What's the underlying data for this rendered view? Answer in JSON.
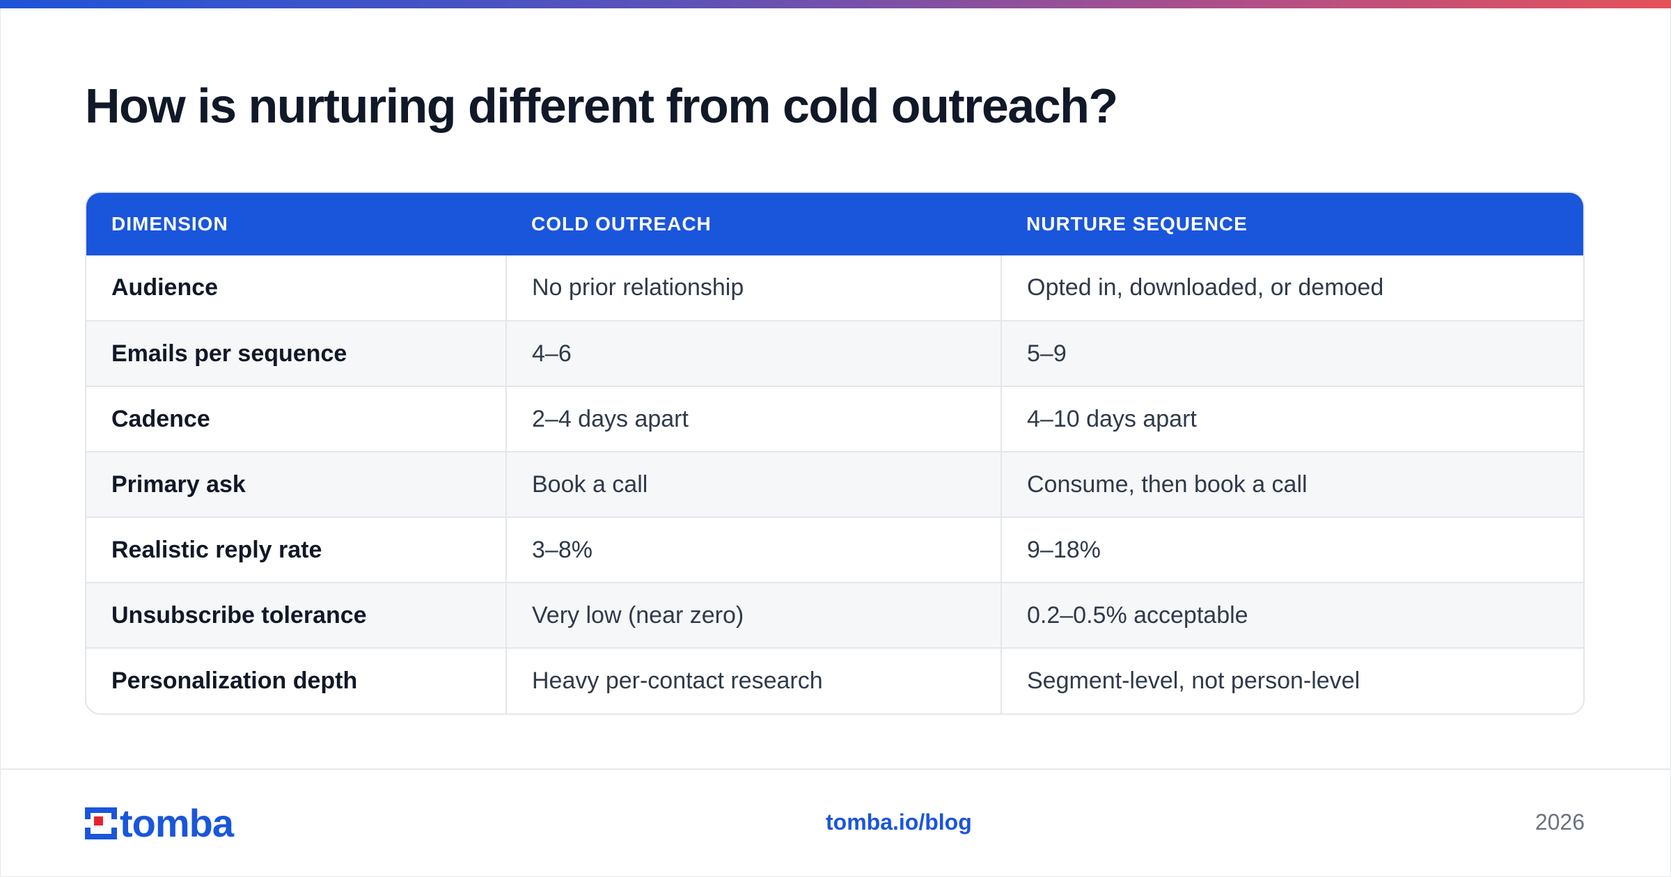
{
  "title": "How is nurturing different from cold outreach?",
  "table": {
    "headers": [
      "DIMENSION",
      "COLD OUTREACH",
      "NURTURE SEQUENCE"
    ],
    "rows": [
      [
        "Audience",
        "No prior relationship",
        "Opted in, downloaded, or demoed"
      ],
      [
        "Emails per sequence",
        "4–6",
        "5–9"
      ],
      [
        "Cadence",
        "2–4 days apart",
        "4–10 days apart"
      ],
      [
        "Primary ask",
        "Book a call",
        "Consume, then book a call"
      ],
      [
        "Realistic reply rate",
        "3–8%",
        "9–18%"
      ],
      [
        "Unsubscribe tolerance",
        "Very low (near zero)",
        "0.2–0.5% acceptable"
      ],
      [
        "Personalization depth",
        "Heavy per-contact research",
        "Segment-level, not person-level"
      ]
    ]
  },
  "footer": {
    "logo_text": "tomba",
    "link": "tomba.io/blog",
    "year": "2026"
  },
  "colors": {
    "accent": "#1a56db",
    "logo_red": "#e4252d",
    "title": "#111827",
    "body_text": "#2f3a4a",
    "muted": "#6b7280"
  },
  "icons": {
    "logo_mark": "tomba-logo-icon"
  }
}
